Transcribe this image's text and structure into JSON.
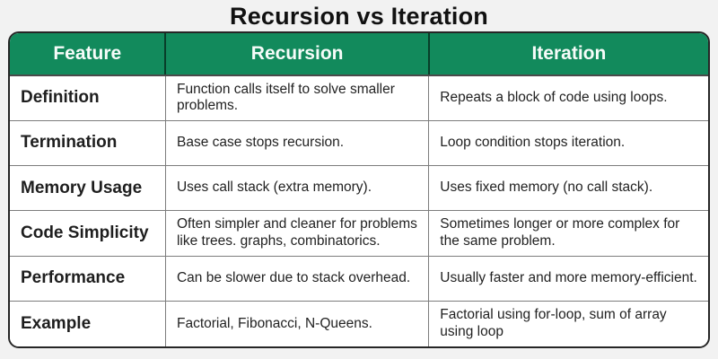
{
  "title": "Recursion vs Iteration",
  "colors": {
    "page_bg": "#f2f2f2",
    "header_bg": "#128a5c",
    "header_text": "#f6fcf9",
    "border_dark": "#262626",
    "grid": "#7d7d7d",
    "cell_bg": "#ffffff",
    "feature_text": "#1e1e1e",
    "cell_text": "#222222",
    "title_text": "#111111"
  },
  "table": {
    "columns": [
      "Feature",
      "Recursion",
      "Iteration"
    ],
    "rows": [
      {
        "feature": "Definition",
        "recursion": "Function calls itself to solve smaller problems.",
        "iteration": "Repeats a block of code using loops."
      },
      {
        "feature": "Termination",
        "recursion": "Base case stops recursion.",
        "iteration": "Loop condition stops iteration."
      },
      {
        "feature": "Memory Usage",
        "recursion": "Uses call stack (extra memory).",
        "iteration": "Uses fixed memory (no call stack)."
      },
      {
        "feature": "Code Simplicity",
        "recursion": "Often simpler and cleaner for problems like trees. graphs, combinatorics.",
        "iteration": "Sometimes longer or more complex for the same problem."
      },
      {
        "feature": "Performance",
        "recursion": "Can be slower due to stack overhead.",
        "iteration": "Usually faster and more memory-efficient."
      },
      {
        "feature": "Example",
        "recursion": "Factorial, Fibonacci, N-Queens.",
        "iteration": "Factorial using for-loop, sum of array using loop"
      }
    ]
  }
}
